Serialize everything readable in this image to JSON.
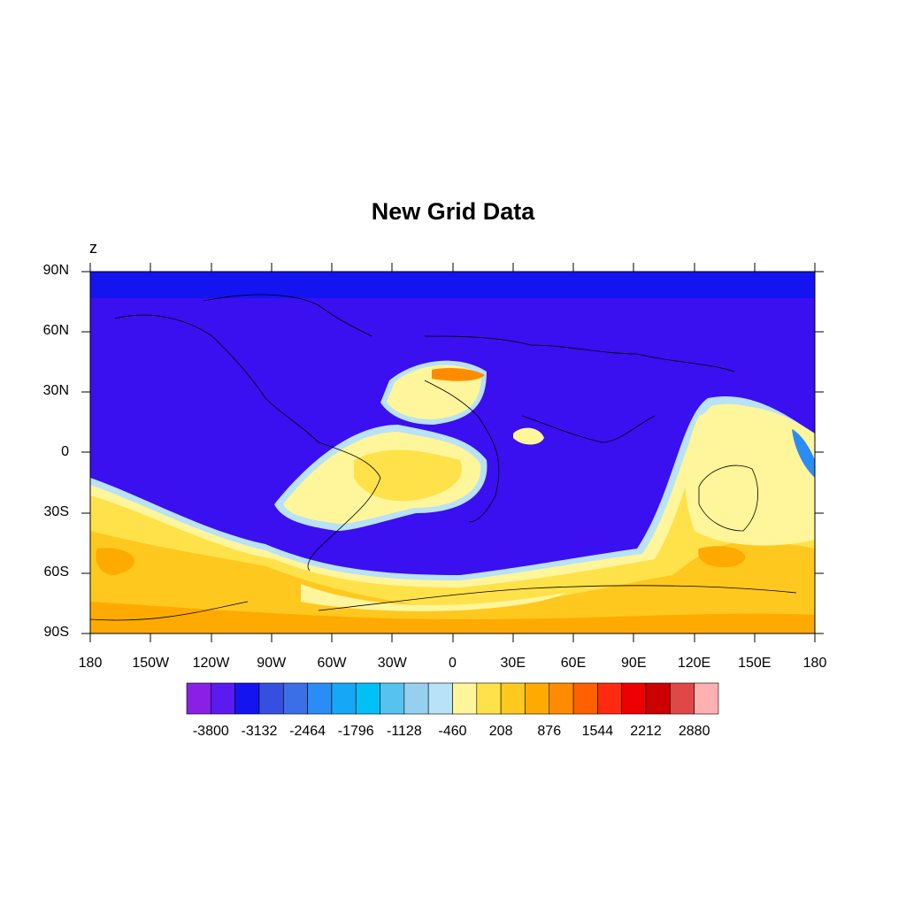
{
  "title": "New Grid Data",
  "variable_label": "z",
  "lat_labels": [
    "90N",
    "60N",
    "30N",
    "0",
    "30S",
    "60S",
    "90S"
  ],
  "lon_labels": [
    "180",
    "150W",
    "120W",
    "90W",
    "60W",
    "30W",
    "0",
    "30E",
    "60E",
    "90E",
    "120E",
    "150E",
    "180"
  ],
  "colorbar": {
    "colors": [
      "#8a1fe6",
      "#5a1af0",
      "#1414f0",
      "#3550e0",
      "#3b6fe8",
      "#2b8cf5",
      "#17a7f7",
      "#00c0f5",
      "#55c2f0",
      "#96d0ee",
      "#b8e2f5",
      "#fff59a",
      "#ffe14a",
      "#ffc81e",
      "#ffaa00",
      "#ff8c00",
      "#ff6000",
      "#ff2a10",
      "#ee0000",
      "#cc0000",
      "#e04848",
      "#ffb0b0"
    ],
    "labels": [
      "-3800",
      "-3132",
      "-2464",
      "-1796",
      "-1128",
      "-460",
      "208",
      "876",
      "1544",
      "2212",
      "2880"
    ]
  },
  "colors": {
    "ocean_low": "#3a0ff0",
    "high_band": "#ffc81e",
    "mid_yellow": "#ffe14a",
    "light_yellow": "#fff59a"
  }
}
